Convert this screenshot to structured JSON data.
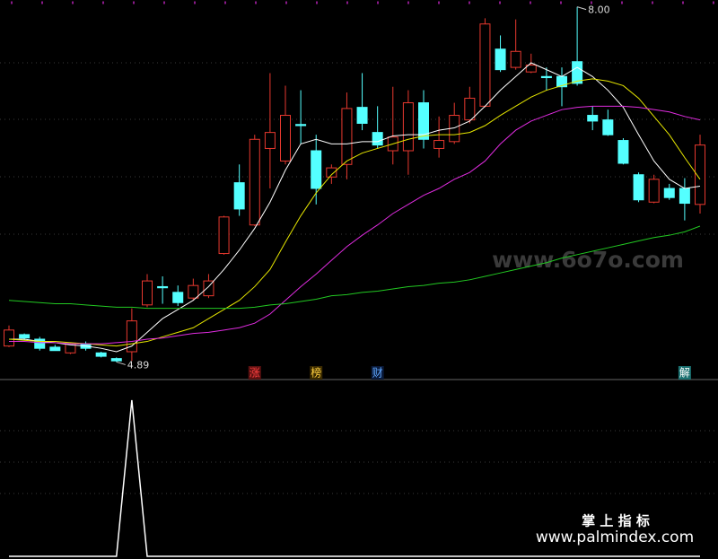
{
  "chart_data": {
    "type": "candlestick",
    "ylim": [
      4.76,
      8.06
    ],
    "up_color": "#e8392f",
    "down_color": "#54ffff",
    "candles": [
      [
        5.03,
        5.21,
        5.02,
        5.17
      ],
      [
        5.13,
        5.14,
        5.08,
        5.1
      ],
      [
        5.09,
        5.11,
        4.99,
        5.01
      ],
      [
        5.02,
        5.04,
        4.99,
        4.99
      ],
      [
        4.97,
        5.06,
        4.96,
        5.05
      ],
      [
        5.05,
        5.07,
        4.99,
        5.01
      ],
      [
        4.97,
        4.98,
        4.93,
        4.94
      ],
      [
        4.92,
        4.93,
        4.89,
        4.9
      ],
      [
        4.98,
        5.36,
        4.9,
        5.25
      ],
      [
        5.39,
        5.66,
        5.37,
        5.6
      ],
      [
        5.55,
        5.64,
        5.4,
        5.54
      ],
      [
        5.5,
        5.56,
        5.38,
        5.41
      ],
      [
        5.45,
        5.62,
        5.43,
        5.56
      ],
      [
        5.47,
        5.66,
        5.45,
        5.6
      ],
      [
        5.84,
        6.17,
        5.83,
        6.16
      ],
      [
        6.46,
        6.62,
        6.17,
        6.23
      ],
      [
        6.09,
        6.88,
        6.08,
        6.84
      ],
      [
        6.76,
        7.42,
        6.41,
        6.9
      ],
      [
        6.65,
        7.31,
        6.62,
        7.05
      ],
      [
        6.97,
        7.27,
        6.8,
        6.96
      ],
      [
        6.74,
        6.88,
        6.27,
        6.41
      ],
      [
        6.51,
        6.62,
        6.45,
        6.59
      ],
      [
        6.62,
        7.25,
        6.49,
        7.11
      ],
      [
        7.12,
        7.42,
        6.92,
        6.98
      ],
      [
        6.9,
        7.13,
        6.76,
        6.79
      ],
      [
        6.74,
        7.3,
        6.62,
        6.86
      ],
      [
        6.74,
        7.27,
        6.53,
        7.16
      ],
      [
        7.16,
        7.27,
        6.76,
        6.84
      ],
      [
        6.76,
        7.04,
        6.68,
        6.83
      ],
      [
        6.82,
        7.16,
        6.8,
        7.05
      ],
      [
        7.01,
        7.3,
        6.98,
        7.2
      ],
      [
        7.13,
        7.9,
        7.12,
        7.85
      ],
      [
        7.63,
        7.75,
        7.43,
        7.45
      ],
      [
        7.47,
        7.89,
        7.45,
        7.61
      ],
      [
        7.43,
        7.59,
        7.42,
        7.49
      ],
      [
        7.39,
        7.47,
        7.27,
        7.38
      ],
      [
        7.39,
        7.47,
        7.13,
        7.3
      ],
      [
        7.52,
        8.0,
        7.31,
        7.33
      ],
      [
        7.05,
        7.13,
        6.92,
        7.0
      ],
      [
        7.01,
        7.1,
        6.87,
        6.88
      ],
      [
        6.83,
        6.85,
        6.62,
        6.63
      ],
      [
        6.53,
        6.55,
        6.29,
        6.31
      ],
      [
        6.29,
        6.53,
        6.28,
        6.49
      ],
      [
        6.41,
        6.45,
        6.31,
        6.33
      ],
      [
        6.41,
        6.5,
        6.13,
        6.28
      ],
      [
        6.27,
        6.88,
        6.19,
        6.79
      ]
    ],
    "series": [
      {
        "color": "#ffffff",
        "values": [
          5.09,
          5.09,
          5.07,
          5.06,
          5.04,
          5.03,
          5.01,
          4.98,
          5.03,
          5.15,
          5.27,
          5.35,
          5.43,
          5.55,
          5.7,
          5.87,
          6.06,
          6.29,
          6.57,
          6.8,
          6.84,
          6.8,
          6.8,
          6.82,
          6.82,
          6.87,
          6.88,
          6.88,
          6.92,
          6.94,
          7.0,
          7.13,
          7.27,
          7.39,
          7.51,
          7.45,
          7.39,
          7.47,
          7.39,
          7.27,
          7.12,
          6.88,
          6.65,
          6.49,
          6.41,
          6.43
        ]
      },
      {
        "color": "#e6e600",
        "values": [
          5.09,
          5.08,
          5.07,
          5.07,
          5.06,
          5.05,
          5.04,
          5.03,
          5.05,
          5.07,
          5.11,
          5.15,
          5.19,
          5.27,
          5.35,
          5.43,
          5.55,
          5.7,
          5.94,
          6.17,
          6.37,
          6.53,
          6.65,
          6.72,
          6.76,
          6.8,
          6.84,
          6.87,
          6.88,
          6.88,
          6.9,
          6.96,
          7.05,
          7.13,
          7.21,
          7.27,
          7.31,
          7.35,
          7.37,
          7.35,
          7.31,
          7.2,
          7.04,
          6.88,
          6.68,
          6.49
        ]
      },
      {
        "color": "#e02ce0",
        "values": [
          5.07,
          5.07,
          5.06,
          5.06,
          5.05,
          5.05,
          5.05,
          5.06,
          5.07,
          5.09,
          5.1,
          5.12,
          5.14,
          5.15,
          5.17,
          5.19,
          5.23,
          5.31,
          5.43,
          5.55,
          5.66,
          5.78,
          5.9,
          6.0,
          6.09,
          6.19,
          6.27,
          6.35,
          6.41,
          6.49,
          6.55,
          6.65,
          6.8,
          6.92,
          7.0,
          7.05,
          7.1,
          7.12,
          7.13,
          7.13,
          7.13,
          7.12,
          7.1,
          7.08,
          7.04,
          7.01
        ]
      },
      {
        "color": "#22c922",
        "values": [
          5.43,
          5.42,
          5.41,
          5.4,
          5.4,
          5.39,
          5.38,
          5.37,
          5.37,
          5.36,
          5.36,
          5.36,
          5.36,
          5.36,
          5.36,
          5.36,
          5.37,
          5.39,
          5.4,
          5.42,
          5.44,
          5.47,
          5.48,
          5.5,
          5.51,
          5.53,
          5.55,
          5.56,
          5.58,
          5.59,
          5.61,
          5.64,
          5.67,
          5.7,
          5.73,
          5.76,
          5.8,
          5.83,
          5.86,
          5.89,
          5.92,
          5.95,
          5.98,
          6.0,
          6.03,
          6.08
        ]
      }
    ],
    "price_labels": [
      {
        "index": 37,
        "value": 8.0,
        "label": "8.00"
      },
      {
        "index": 7,
        "value": 4.89,
        "label": "4.89"
      }
    ],
    "markers": [
      {
        "index": 16,
        "text": "涨",
        "color": "#ff4040",
        "bg": "#5a1010"
      },
      {
        "index": 20,
        "text": "榜",
        "color": "#ffd040",
        "bg": "#3a2a00"
      },
      {
        "index": 24,
        "text": "财",
        "color": "#60a8ff",
        "bg": "#0a1a3a"
      },
      {
        "index": 44,
        "text": "解",
        "color": "#ffffff",
        "bg": "#1a7070"
      }
    ],
    "indicator": {
      "color": "#ffffff",
      "ylim": [
        0,
        1.12
      ],
      "values": [
        0,
        0,
        0,
        0,
        0,
        0,
        0,
        0,
        1,
        0,
        0,
        0,
        0,
        0,
        0,
        0,
        0,
        0,
        0,
        0,
        0,
        0,
        0,
        0,
        0,
        0,
        0,
        0,
        0,
        0,
        0,
        0,
        0,
        0,
        0,
        0,
        0,
        0,
        0,
        0,
        0,
        0,
        0,
        0,
        0,
        0
      ]
    },
    "watermarks": [
      "www.6o7o.com",
      "掌 上 指 标",
      "www.palmindex.com"
    ]
  }
}
